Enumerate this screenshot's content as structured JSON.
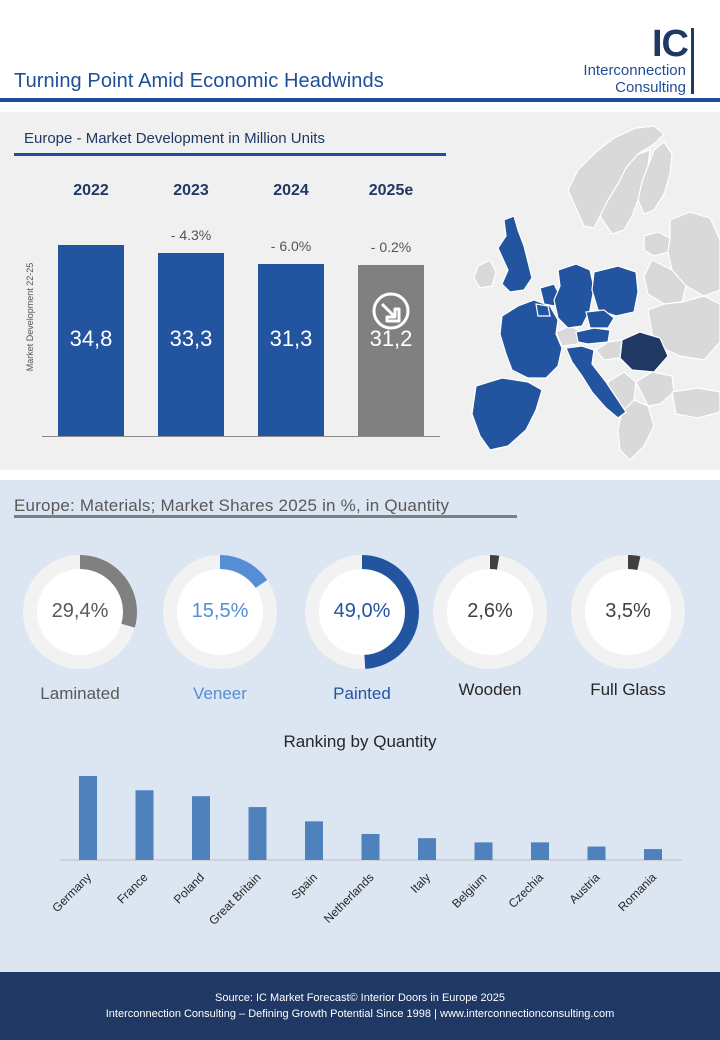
{
  "header": {
    "title": "Turning Point Amid Economic Headwinds",
    "logo": {
      "mark": "IC",
      "line1": "Interconnection",
      "line2": "Consulting"
    }
  },
  "market_section": {
    "title": "Europe - Market Development in Million Units",
    "ylabel": "Market Development  22-25"
  },
  "materials_section": {
    "title": "Europe: Materials; Market Shares 2025 in %,  in Quantity",
    "ranking_title": "Ranking by Quantity"
  },
  "footer": {
    "line1": "Source: IC Market Forecast© Interior Doors in Europe 2025",
    "line2": "Interconnection  Consulting – Defining Growth Potential Since 1998 | www.interconnectionconsulting.com"
  },
  "colors": {
    "navy": "#1f3864",
    "blue": "#2354a0",
    "light_blue": "#558ed5",
    "grey": "#808080",
    "ring_bg": "#f2f2f2"
  },
  "map": {
    "icon": "europe-map-icon"
  },
  "chart_data": [
    {
      "type": "bar",
      "title": "Europe - Market Development in Million Units",
      "categories": [
        "2022",
        "2023",
        "2024",
        "2025e"
      ],
      "values": [
        34.8,
        33.3,
        31.3,
        31.2
      ],
      "value_labels": [
        "34,8",
        "33,3",
        "31,3",
        "31,2"
      ],
      "change_labels": [
        "",
        "- 4.3%",
        "- 6.0%",
        "- 0.2%"
      ],
      "bar_colors": [
        "#2354a0",
        "#2354a0",
        "#2354a0",
        "#808080"
      ],
      "ylabel": "Market Development  22-25",
      "ylim": [
        0,
        36
      ],
      "annotation_icon": "down-arrow-icon"
    },
    {
      "type": "pie",
      "title": "Europe: Materials; Market Shares 2025 in %,  in Quantity",
      "categories": [
        "Laminated",
        "Veneer",
        "Painted",
        "Wooden",
        "Full Glass"
      ],
      "values": [
        29.4,
        15.5,
        49.0,
        2.6,
        3.5
      ],
      "value_labels": [
        "29,4%",
        "15,5%",
        "49,0%",
        "2,6%",
        "3,5%"
      ],
      "colors": [
        "#808080",
        "#558ed5",
        "#2354a0",
        "#404040",
        "#404040"
      ],
      "label_colors": [
        "#595959",
        "#558ed5",
        "#2354a0",
        "#262626",
        "#262626"
      ]
    },
    {
      "type": "bar",
      "title": "Ranking by Quantity",
      "categories": [
        "Germany",
        "France",
        "Poland",
        "Great Britain",
        "Spain",
        "Netherlands",
        "Italy",
        "Belgium",
        "Czechia",
        "Austria",
        "Romania"
      ],
      "values": [
        100,
        83,
        76,
        63,
        46,
        31,
        26,
        21,
        21,
        16,
        13
      ],
      "color": "#4f81bd",
      "grid": false
    }
  ]
}
